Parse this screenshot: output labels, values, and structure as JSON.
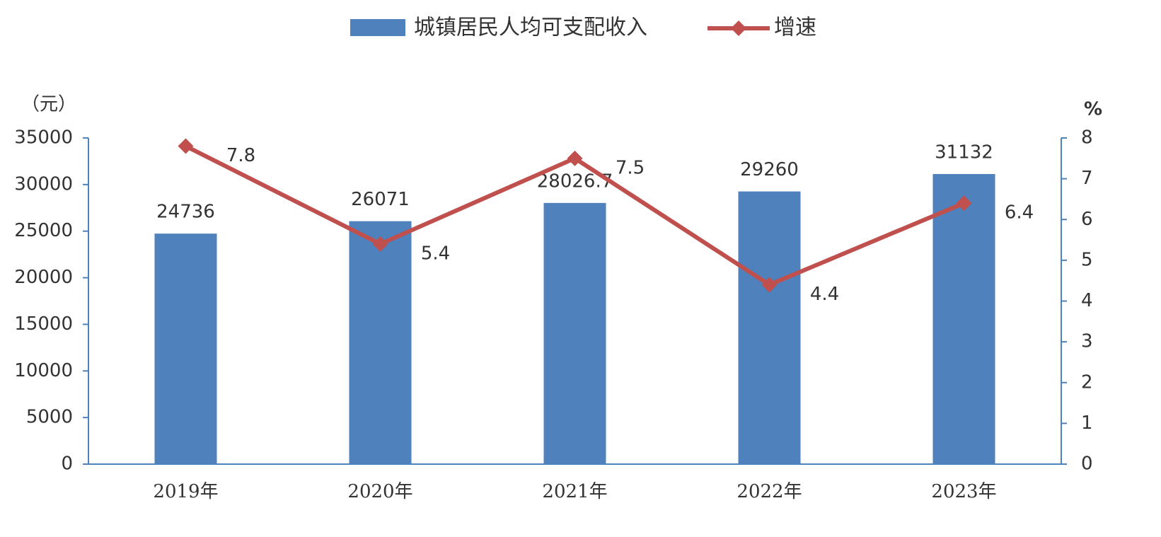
{
  "chart_data": {
    "type": "bar_line",
    "categories": [
      "2019年",
      "2020年",
      "2021年",
      "2022年",
      "2023年"
    ],
    "y_label": "（元）",
    "y2_label": "%",
    "series": [
      {
        "name": "城镇居民人均可支配收入",
        "color": "#4f81bd",
        "type": "bar",
        "values": [
          24736,
          26071,
          28026.7,
          29260,
          31132
        ]
      },
      {
        "name": "增速",
        "color": "#c0504d",
        "type": "line",
        "axis": "y2",
        "values": [
          7.8,
          5.4,
          7.5,
          4.4,
          6.4
        ]
      }
    ],
    "ylim": [
      0,
      35000
    ],
    "yticks": [
      0,
      5000,
      10000,
      15000,
      20000,
      25000,
      30000,
      35000
    ],
    "y2lim": [
      0,
      8
    ],
    "y2ticks": [
      0,
      1,
      2,
      3,
      4,
      5,
      6,
      7,
      8
    ]
  }
}
